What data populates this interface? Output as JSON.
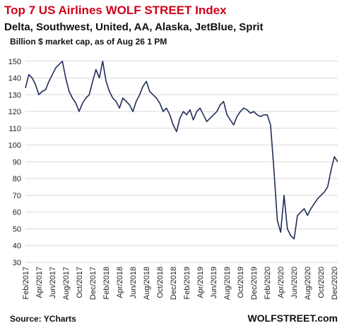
{
  "chart_data": {
    "type": "line",
    "title": "Top 7 US Airlines WOLF STREET Index",
    "subtitle": "Delta, Southwest, United, AA, Alaska, JetBlue, Sprit",
    "note": "Billion $ market cap, as of Aug 26 1 PM",
    "source": "Source: YCharts",
    "credit": "WOLFSTREET.com",
    "categories": [
      "Feb/2017",
      null,
      null,
      null,
      "Apr/2017",
      null,
      null,
      null,
      "Jun/2017",
      null,
      null,
      null,
      "Aug/2017",
      null,
      null,
      null,
      "Oct/2017",
      null,
      null,
      null,
      "Dec/2017",
      null,
      null,
      null,
      "Feb/2018",
      null,
      null,
      null,
      "Apr/2018",
      null,
      null,
      null,
      "Jun/2018",
      null,
      null,
      null,
      "Aug/2018",
      null,
      null,
      null,
      "Oct/2018",
      null,
      null,
      null,
      "Dec/2018",
      null,
      null,
      null,
      "Feb/2019",
      null,
      null,
      null,
      "Apr/2019",
      null,
      null,
      null,
      "Jun/2019",
      null,
      null,
      null,
      "Aug/2019",
      null,
      null,
      null,
      "Oct/2019",
      null,
      null,
      null,
      "Dec/2019",
      null,
      null,
      null,
      "Feb/2020",
      null,
      null,
      null,
      "Apr/2020",
      null,
      null,
      null,
      "Jun/2020",
      null,
      null,
      null,
      "Aug/2020",
      null,
      null,
      null,
      "Oct/2020",
      null,
      null,
      null,
      "Dec/2020",
      null
    ],
    "series": [
      {
        "name": "Index",
        "color": "#1f2d5a",
        "values": [
          134,
          142,
          140,
          136,
          130,
          132,
          133,
          138,
          142,
          146,
          148,
          150,
          140,
          132,
          128,
          125,
          120,
          125,
          128,
          130,
          138,
          145,
          140,
          150,
          138,
          132,
          128,
          126,
          122,
          128,
          126,
          124,
          120,
          126,
          130,
          135,
          138,
          132,
          130,
          128,
          125,
          120,
          122,
          118,
          112,
          108,
          116,
          120,
          118,
          121,
          115,
          120,
          122,
          118,
          114,
          116,
          118,
          120,
          124,
          126,
          118,
          115,
          112,
          117,
          120,
          122,
          121,
          119,
          120,
          118,
          117,
          118,
          118,
          112,
          85,
          55,
          48,
          70,
          50,
          46,
          44,
          58,
          60,
          62,
          58,
          62,
          65,
          68,
          70,
          72,
          75,
          85,
          93,
          90
        ]
      }
    ],
    "ylim": [
      30,
      152
    ],
    "yticks": [
      30,
      40,
      50,
      60,
      70,
      80,
      90,
      100,
      110,
      120,
      130,
      140,
      150
    ],
    "grid": true
  }
}
